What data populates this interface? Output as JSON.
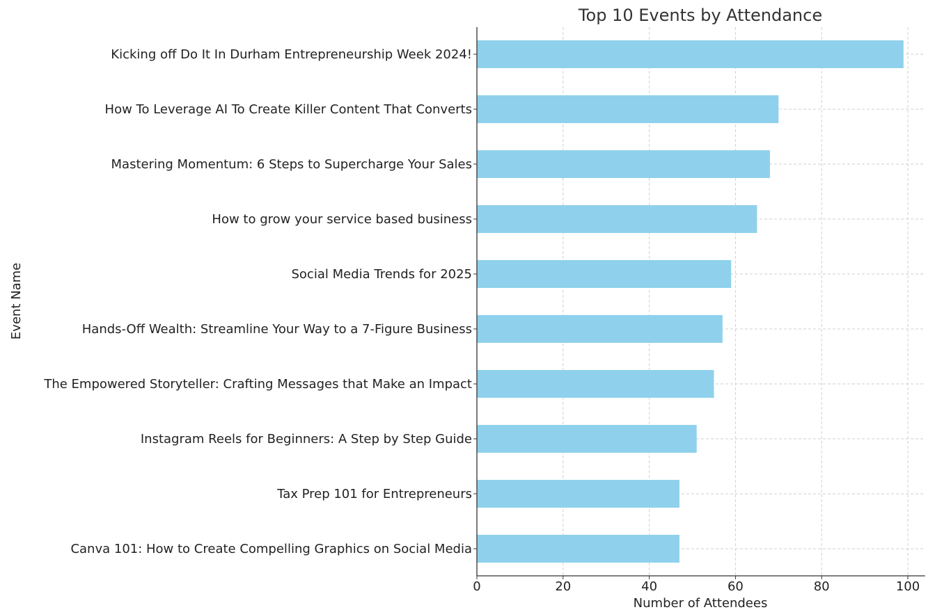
{
  "chart_data": {
    "type": "bar",
    "orientation": "horizontal",
    "title": "Top 10 Events by Attendance",
    "xlabel": "Number of Attendees",
    "ylabel": "Event Name",
    "xlim": [
      0,
      104
    ],
    "xticks": [
      0,
      20,
      40,
      60,
      80,
      100
    ],
    "grid": true,
    "categories": [
      "Kicking off Do It In Durham Entrepreneurship Week 2024!",
      "How To Leverage AI To Create Killer Content That Converts",
      "Mastering Momentum: 6 Steps to Supercharge Your Sales",
      "How to grow your service based business",
      "Social Media Trends for 2025",
      "Hands-Off Wealth: Streamline Your Way to a 7-Figure Business",
      "The Empowered Storyteller: Crafting Messages that Make an Impact",
      "Instagram Reels for Beginners: A Step by Step Guide",
      "Tax Prep 101 for Entrepreneurs",
      "Canva 101: How to Create Compelling Graphics on Social Media"
    ],
    "values": [
      99,
      70,
      68,
      65,
      59,
      57,
      55,
      51,
      47,
      47
    ],
    "bar_color": "#8fd1ec"
  }
}
